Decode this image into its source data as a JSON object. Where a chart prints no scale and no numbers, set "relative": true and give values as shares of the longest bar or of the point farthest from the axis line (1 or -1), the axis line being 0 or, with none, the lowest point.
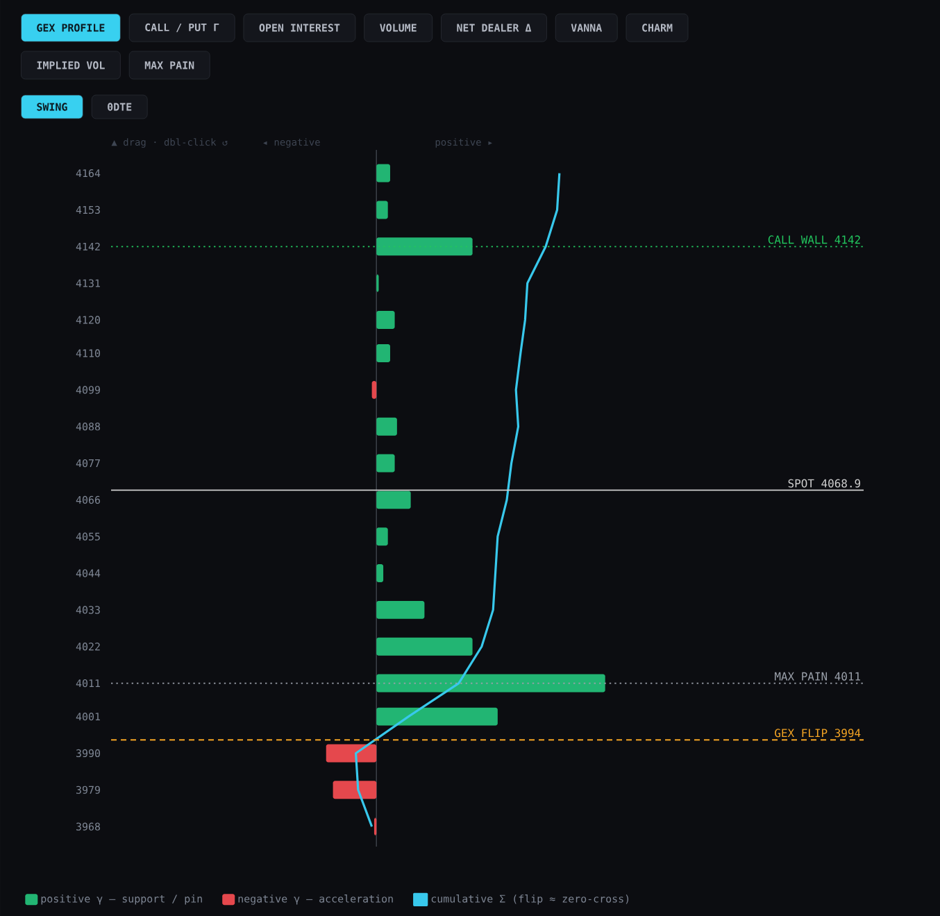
{
  "chart_data": {
    "type": "bar",
    "orientation": "horizontal",
    "relative": true,
    "x": [
      4164,
      4153,
      4142,
      4131,
      4120,
      4110,
      4099,
      4088,
      4077,
      4066,
      4055,
      4044,
      4033,
      4022,
      4011,
      4001,
      3990,
      3979,
      3968
    ],
    "ylim": [
      3962,
      4171
    ],
    "yticks": [
      4164,
      4153,
      4142,
      4131,
      4120,
      4110,
      4099,
      4088,
      4077,
      4066,
      4055,
      4044,
      4033,
      4022,
      4011,
      4001,
      3990,
      3979,
      3968
    ],
    "series": [
      {
        "name": "positive γ — support / pin",
        "color": "#22b573",
        "values": [
          0.06,
          0.05,
          0.42,
          0.01,
          0.08,
          0.06,
          null,
          0.09,
          0.08,
          0.15,
          0.05,
          0.03,
          0.21,
          0.42,
          1,
          0.53,
          null,
          null,
          null
        ]
      },
      {
        "name": "negative γ — acceleration",
        "color": "#e5484d",
        "values": [
          null,
          null,
          null,
          null,
          null,
          null,
          -0.02,
          null,
          null,
          null,
          null,
          null,
          null,
          null,
          null,
          null,
          -0.22,
          -0.19,
          -0.01
        ]
      },
      {
        "name": "cumulative Σ (flip ≈ zero-cross)",
        "type": "line",
        "color": "#38c8ec",
        "values": [
          0.8,
          0.79,
          0.74,
          0.66,
          0.65,
          0.63,
          0.61,
          0.62,
          0.59,
          0.57,
          0.53,
          0.52,
          0.51,
          0.46,
          0.36,
          0.14,
          -0.09,
          -0.08,
          -0.02
        ]
      }
    ],
    "ref_lines": [
      {
        "axis": "y",
        "value": 4142,
        "label": "CALL WALL 4142",
        "color": "#22c55e",
        "line_style": "dotted"
      },
      {
        "axis": "y",
        "value": 4068.9,
        "label": "SPOT 4068.9",
        "color": "#d0d0d0",
        "line_style": "solid"
      },
      {
        "axis": "y",
        "value": 4011,
        "label": "MAX PAIN 4011",
        "color": "#9aa0aa",
        "line_style": "dotted"
      },
      {
        "axis": "y",
        "value": 3994,
        "label": "GEX FLIP 3994",
        "color": "#f5a524",
        "line_style": "dashed"
      }
    ],
    "legend": "bottom left",
    "annotations": [
      "GEX PROFILE",
      "CALL / PUT Γ",
      "OPEN INTEREST",
      "VOLUME",
      "NET DEALER Δ",
      "VANNA",
      "CHARM",
      "IMPLIED VOL",
      "MAX PAIN",
      "SWING",
      "0DTE",
      "▲ drag · dbl-click ↺",
      "◂ negative",
      "positive ▸"
    ]
  }
}
